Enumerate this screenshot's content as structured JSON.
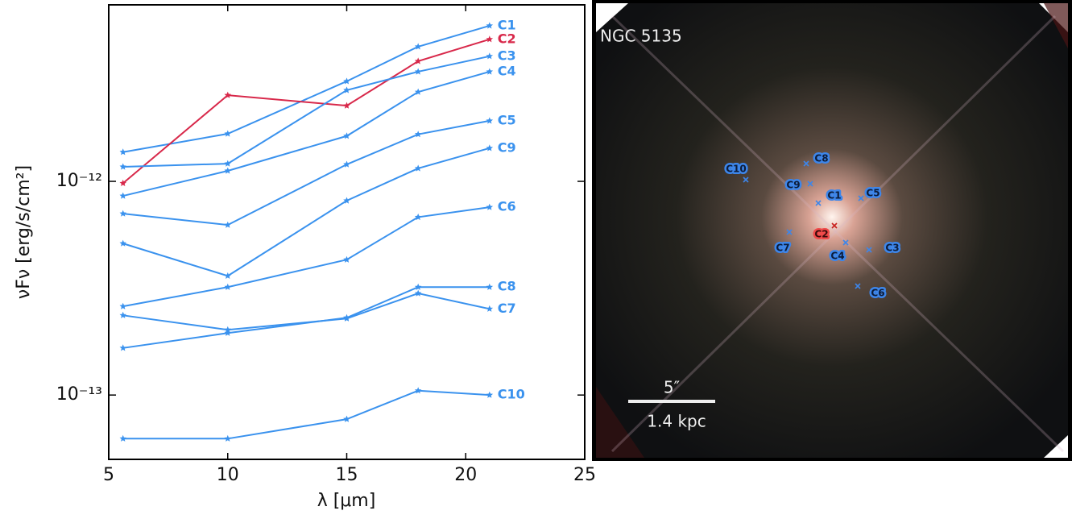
{
  "chart_data": {
    "type": "line",
    "x_label": "λ [μm]",
    "y_label": "νFν [erg/s/cm²]",
    "x": [
      5.6,
      10,
      15,
      18,
      21
    ],
    "xlim": [
      5,
      25
    ],
    "xticks": [
      5,
      10,
      15,
      20,
      25
    ],
    "yscale": "log",
    "ylim": [
      5e-14,
      6.7e-12
    ],
    "yticks": [
      {
        "value": 1e-12,
        "label": "10⁻¹²"
      },
      {
        "value": 1e-13,
        "label": "10⁻¹³"
      }
    ],
    "series": [
      {
        "name": "C1",
        "color": "#3a92ee",
        "values": [
          1.37e-12,
          1.67e-12,
          2.94e-12,
          4.27e-12,
          5.35e-12
        ]
      },
      {
        "name": "C2",
        "color": "#d8284a",
        "values": [
          9.8e-13,
          2.53e-12,
          2.26e-12,
          3.65e-12,
          4.62e-12
        ]
      },
      {
        "name": "C3",
        "color": "#3a92ee",
        "values": [
          1.17e-12,
          1.21e-12,
          2.67e-12,
          3.26e-12,
          3.85e-12
        ]
      },
      {
        "name": "C4",
        "color": "#3a92ee",
        "values": [
          8.55e-13,
          1.12e-12,
          1.63e-12,
          2.62e-12,
          3.26e-12
        ]
      },
      {
        "name": "C5",
        "color": "#3a92ee",
        "values": [
          7.06e-13,
          6.25e-13,
          1.2e-12,
          1.66e-12,
          1.92e-12
        ]
      },
      {
        "name": "C9",
        "color": "#3a92ee",
        "values": [
          5.12e-13,
          3.61e-13,
          8.12e-13,
          1.15e-12,
          1.43e-12
        ]
      },
      {
        "name": "C6",
        "color": "#3a92ee",
        "values": [
          2.6e-13,
          3.2e-13,
          4.3e-13,
          6.8e-13,
          7.57e-13
        ]
      },
      {
        "name": "C8",
        "color": "#3a92ee",
        "values": [
          1.66e-13,
          1.95e-13,
          2.3e-13,
          3.2e-13,
          3.2e-13
        ]
      },
      {
        "name": "C7",
        "color": "#3a92ee",
        "values": [
          2.36e-13,
          2.02e-13,
          2.28e-13,
          2.99e-13,
          2.53e-13
        ]
      },
      {
        "name": "C10",
        "color": "#3a92ee",
        "values": [
          6.25e-14,
          6.25e-14,
          7.71e-14,
          1.048e-13,
          1e-13
        ]
      }
    ]
  },
  "image": {
    "title": "NGC 5135",
    "scale_angle": "5″",
    "scale_distance": "1.4 kpc",
    "markers": [
      "C1",
      "C2",
      "C3",
      "C4",
      "C5",
      "C6",
      "C7",
      "C8",
      "C9",
      "C10"
    ]
  }
}
